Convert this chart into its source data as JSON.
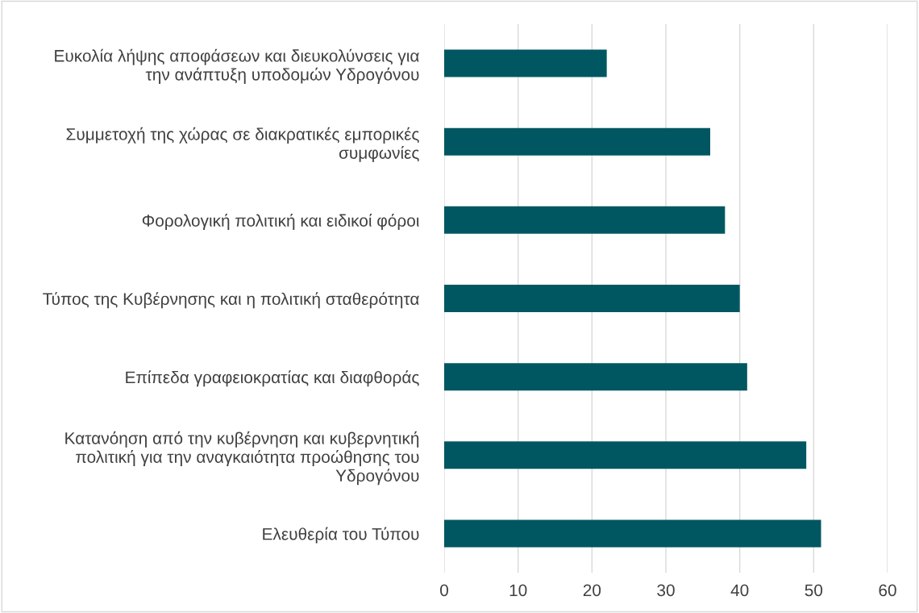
{
  "chart_data": {
    "type": "bar",
    "orientation": "horizontal",
    "categories": [
      "Ευκολία λήψης αποφάσεων και διευκολύνσεις για\nτην ανάπτυξη υποδομών Υδρογόνου",
      "Συμμετοχή της χώρας σε διακρατικές εμπορικές\nσυμφωνίες",
      "Φορολογική πολιτική και ειδικοί φόροι",
      "Τύπος της Κυβέρνησης και η πολιτική σταθερότητα",
      "Επίπεδα γραφειοκρατίας και διαφθοράς",
      "Κατανόηση από την κυβέρνηση και κυβερνητική\nπολιτική για την αναγκαιότητα προώθησης του\nΥδρογόνου",
      "Ελευθερία του Τύπου"
    ],
    "values": [
      22,
      36,
      38,
      40,
      41,
      49,
      51
    ],
    "color": "#005761",
    "xlim": [
      0,
      60
    ],
    "xticks": [
      0,
      10,
      20,
      30,
      40,
      50,
      60
    ],
    "grid": "x"
  }
}
